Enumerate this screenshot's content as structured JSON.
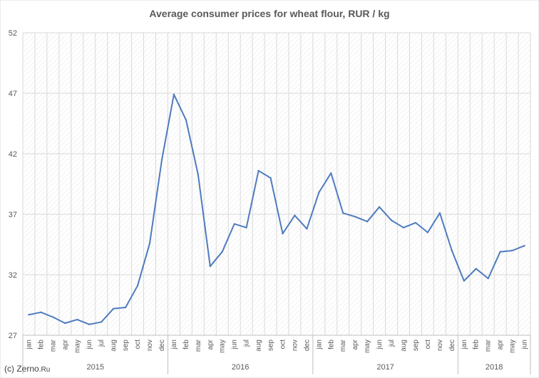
{
  "chart_data": {
    "type": "line",
    "title": "Average consumer prices for wheat flour, RUR / kg",
    "xlabel": "",
    "ylabel": "",
    "ylim": [
      27,
      52
    ],
    "yticks": [
      27,
      32,
      37,
      42,
      47,
      52
    ],
    "grid": "hatched-vertical-bands",
    "legend": "none",
    "line_color": "#4f7bbf",
    "categories": [
      "jan",
      "feb",
      "mar",
      "apr",
      "may",
      "jun",
      "jul",
      "aug",
      "sep",
      "oct",
      "nov",
      "dec",
      "jan",
      "feb",
      "mar",
      "apr",
      "may",
      "jun",
      "jul",
      "aug",
      "sep",
      "oct",
      "nov",
      "dec",
      "jan",
      "feb",
      "mar",
      "apr",
      "may",
      "jun",
      "jul",
      "aug",
      "sep",
      "oct",
      "nov",
      "dec",
      "jan",
      "feb",
      "mar",
      "apr",
      "may",
      "jun"
    ],
    "year_groups": [
      {
        "label": "2015",
        "count": 12
      },
      {
        "label": "2016",
        "count": 12
      },
      {
        "label": "2017",
        "count": 12
      },
      {
        "label": "2018",
        "count": 6
      }
    ],
    "series": [
      {
        "values": [
          28.7,
          28.9,
          28.5,
          28.0,
          28.3,
          27.9,
          28.1,
          29.2,
          29.3,
          31.1,
          34.6,
          41.5,
          46.9,
          44.8,
          40.3,
          32.7,
          33.9,
          36.2,
          35.9,
          40.6,
          40.0,
          35.4,
          36.9,
          35.8,
          38.8,
          40.4,
          37.1,
          36.8,
          36.4,
          37.6,
          36.5,
          35.9,
          36.3,
          35.5,
          37.1,
          34.0,
          31.5,
          32.5,
          31.7,
          33.9,
          34.0,
          34.4
        ]
      }
    ]
  },
  "credit": {
    "prefix": "(c) Zerno",
    "suffix": ".Ru"
  }
}
